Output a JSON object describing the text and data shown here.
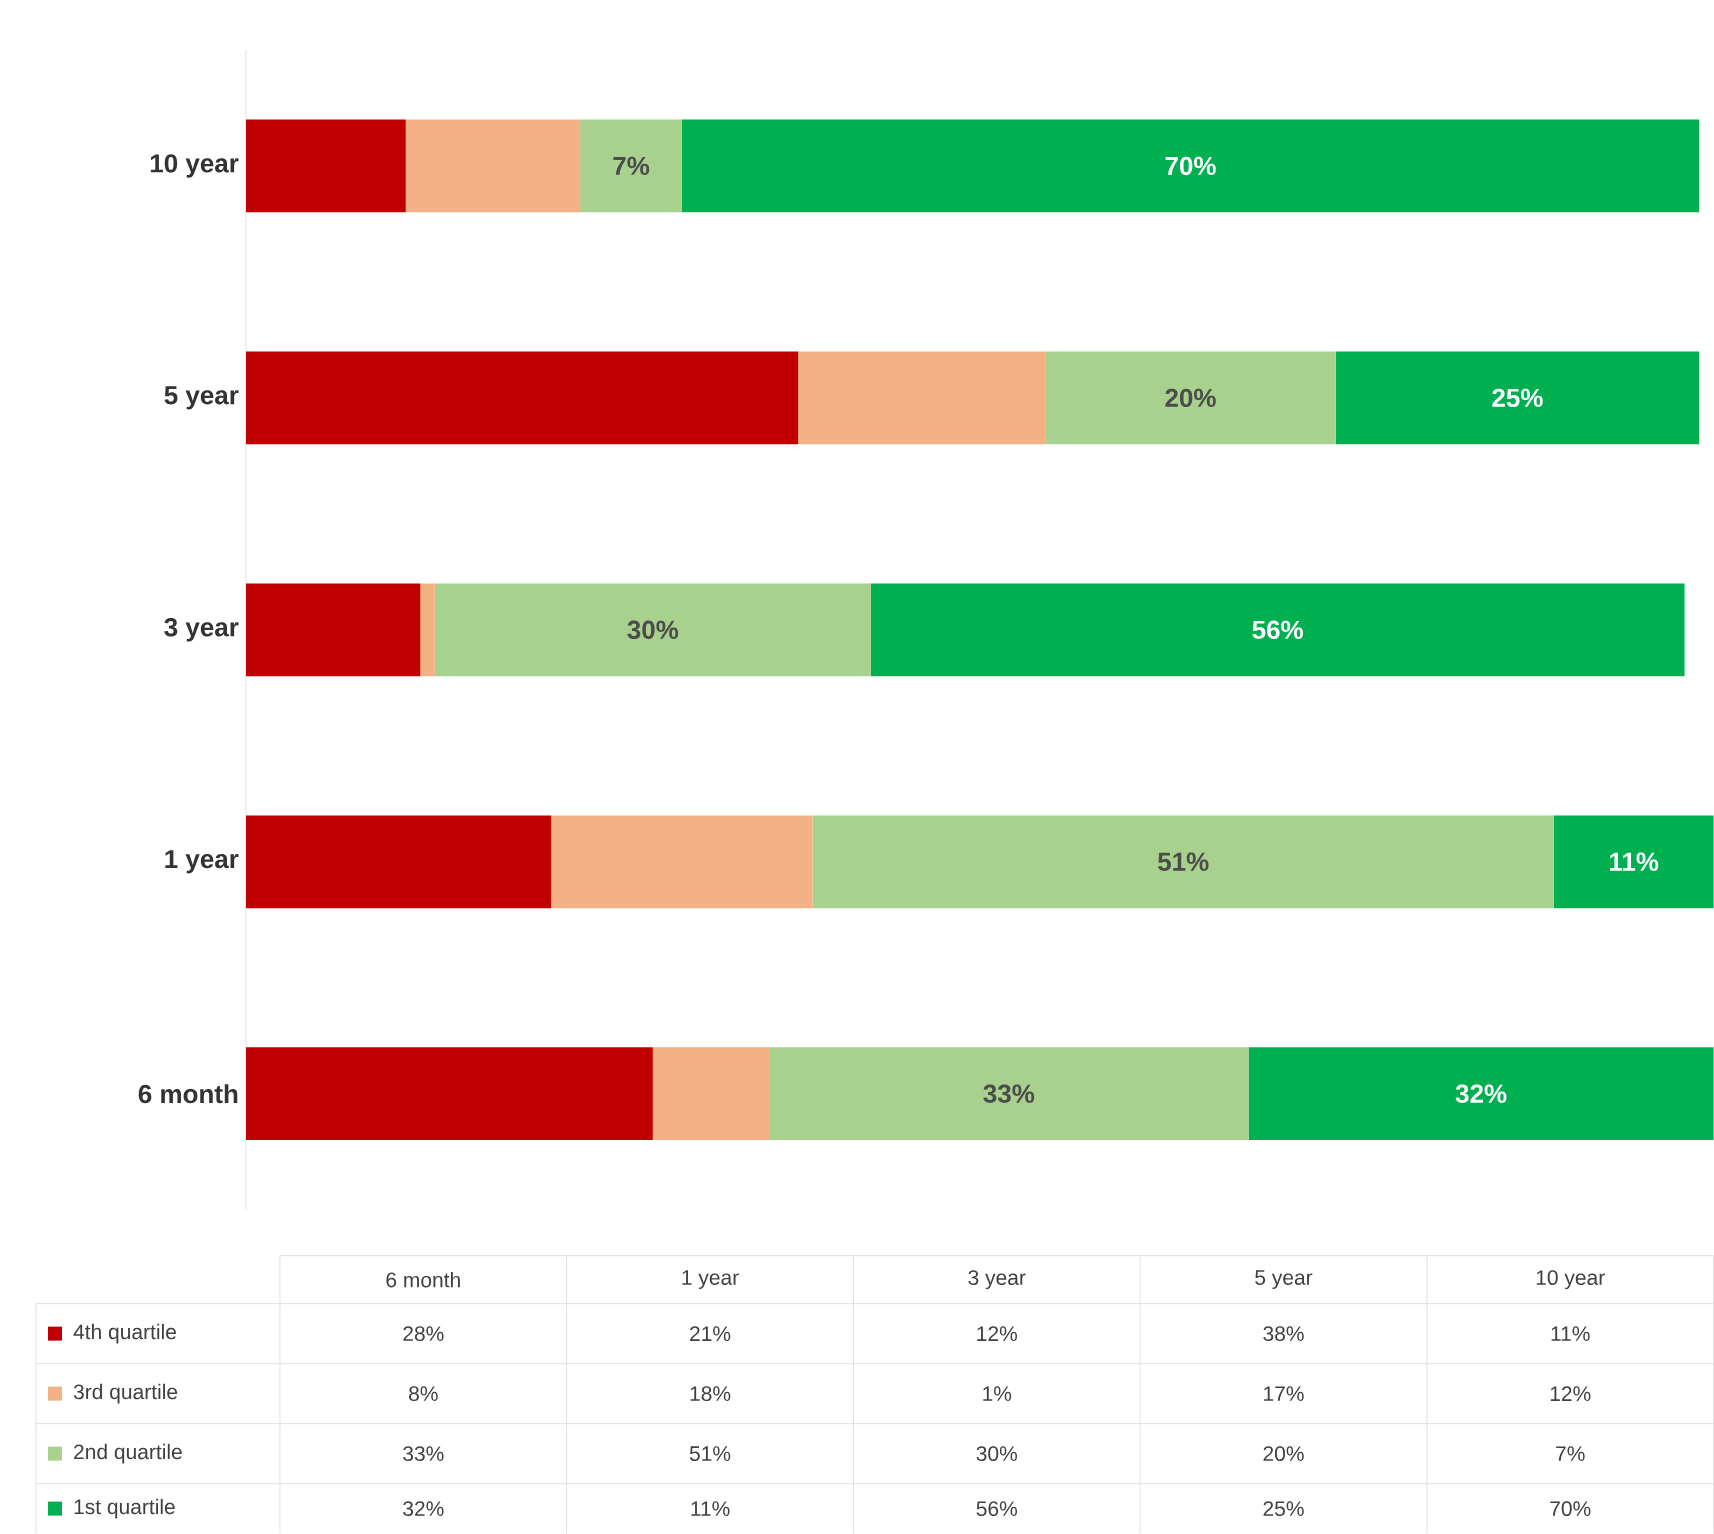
{
  "chart_data": {
    "type": "bar",
    "orientation": "horizontal",
    "stacked": true,
    "categories": [
      "10 year",
      "5 year",
      "3 year",
      "1 year",
      "6 month"
    ],
    "series": [
      {
        "name": "4th quartile",
        "color": "#c00000",
        "values": [
          11,
          38,
          12,
          21,
          28
        ]
      },
      {
        "name": "3rd quartile",
        "color": "#f4b183",
        "values": [
          12,
          17,
          1,
          18,
          8
        ]
      },
      {
        "name": "2nd quartile",
        "color": "#a9d18e",
        "values": [
          7,
          20,
          30,
          51,
          33
        ],
        "value_labels": [
          "7%",
          "20%",
          "30%",
          "51%",
          "33%"
        ]
      },
      {
        "name": "1st quartile",
        "color": "#00b050",
        "values": [
          70,
          25,
          56,
          11,
          32
        ],
        "value_labels": [
          "70%",
          "25%",
          "56%",
          "11%",
          "32%"
        ]
      }
    ],
    "annotations": [
      "28%",
      "21%",
      "12%",
      "38%",
      "11%",
      "8%",
      "18%",
      "1%",
      "17%",
      "12%"
    ],
    "legend": "bottom",
    "grid": false
  }
}
